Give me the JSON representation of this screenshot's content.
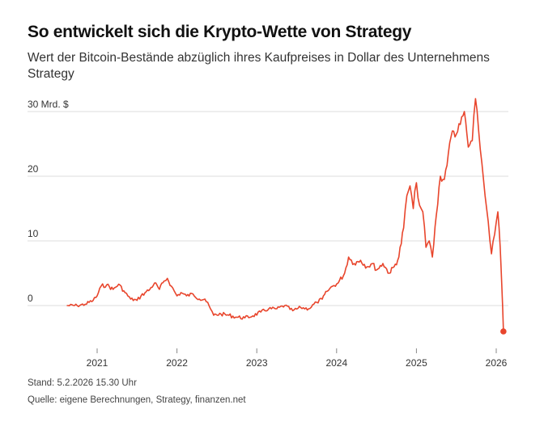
{
  "title": "So entwickelt sich die Krypto-Wette von Strategy",
  "subtitle": "Wert der Bitcoin-Bestände abzüglich ihres Kaufpreises in Dollar des Unternehmens Strategy",
  "footer": {
    "stand": "Stand: 5.2.2026 15.30 Uhr",
    "quelle": "Quelle: eigene Berechnungen, Strategy, finanzen.net"
  },
  "colors": {
    "line": "#e8452c",
    "grid": "#dcdcdc"
  },
  "chart_data": {
    "type": "line",
    "title": "So entwickelt sich die Krypto-Wette von Strategy",
    "subtitle": "Wert der Bitcoin-Bestände abzüglich ihres Kaufpreises in Dollar des Unternehmens Strategy",
    "xlabel": "",
    "ylabel": "",
    "y_unit_label": "30 Mrd. $",
    "ylim": [
      -6,
      32
    ],
    "xlim": [
      2020.6,
      2026.12
    ],
    "grid": true,
    "y_ticks": [
      {
        "value": 0,
        "label": "0"
      },
      {
        "value": 10,
        "label": "10"
      },
      {
        "value": 20,
        "label": "20"
      },
      {
        "value": 30,
        "label": "30 Mrd. $"
      }
    ],
    "x_ticks": [
      {
        "value": 2021,
        "label": "2021"
      },
      {
        "value": 2022,
        "label": "2022"
      },
      {
        "value": 2023,
        "label": "2023"
      },
      {
        "value": 2024,
        "label": "2024"
      },
      {
        "value": 2025,
        "label": "2025"
      },
      {
        "value": 2026,
        "label": "2026"
      }
    ],
    "series": [
      {
        "color": "#e8452c",
        "x": [
          2020.62,
          2020.75,
          2020.85,
          2020.95,
          2021.0,
          2021.05,
          2021.12,
          2021.2,
          2021.27,
          2021.35,
          2021.42,
          2021.5,
          2021.55,
          2021.6,
          2021.66,
          2021.72,
          2021.78,
          2021.84,
          2021.88,
          2021.93,
          2022.0,
          2022.05,
          2022.12,
          2022.2,
          2022.28,
          2022.35,
          2022.42,
          2022.46,
          2022.55,
          2022.65,
          2022.75,
          2022.85,
          2022.95,
          2023.05,
          2023.15,
          2023.25,
          2023.35,
          2023.45,
          2023.55,
          2023.65,
          2023.75,
          2023.82,
          2023.88,
          2023.95,
          2024.02,
          2024.1,
          2024.15,
          2024.22,
          2024.3,
          2024.38,
          2024.45,
          2024.5,
          2024.58,
          2024.66,
          2024.72,
          2024.78,
          2024.84,
          2024.88,
          2024.92,
          2024.96,
          2025.0,
          2025.04,
          2025.08,
          2025.12,
          2025.16,
          2025.2,
          2025.25,
          2025.3,
          2025.35,
          2025.4,
          2025.45,
          2025.5,
          2025.55,
          2025.6,
          2025.65,
          2025.7,
          2025.74,
          2025.78,
          2025.82,
          2025.86,
          2025.9,
          2025.94,
          2025.98,
          2026.02,
          2026.05,
          2026.07,
          2026.09
        ],
        "y": [
          0,
          0,
          0.2,
          0.8,
          1.5,
          3.0,
          3.2,
          2.5,
          3.3,
          2.0,
          1.0,
          0.8,
          1.5,
          2.0,
          2.5,
          3.5,
          2.5,
          3.8,
          4.2,
          3.0,
          1.5,
          2.0,
          1.5,
          1.8,
          1.0,
          1.0,
          -0.5,
          -1.5,
          -1.3,
          -1.5,
          -1.8,
          -1.9,
          -1.6,
          -1.0,
          -0.5,
          -0.5,
          0.0,
          -0.8,
          -0.3,
          -0.5,
          0.5,
          1.0,
          2.2,
          3.0,
          3.5,
          5.0,
          7.5,
          6.5,
          7.0,
          6.0,
          6.5,
          5.5,
          6.5,
          5.0,
          6.0,
          7.5,
          12.0,
          17.0,
          18.5,
          15.0,
          19.0,
          15.5,
          14.5,
          9.0,
          10.0,
          7.5,
          14.0,
          20.0,
          19.5,
          23.5,
          27.0,
          26.5,
          28.0,
          30.0,
          24.5,
          25.5,
          32.0,
          27.0,
          22.0,
          17.0,
          13.0,
          8.0,
          11.0,
          14.5,
          9.0,
          3.0,
          -4.0
        ]
      }
    ]
  }
}
